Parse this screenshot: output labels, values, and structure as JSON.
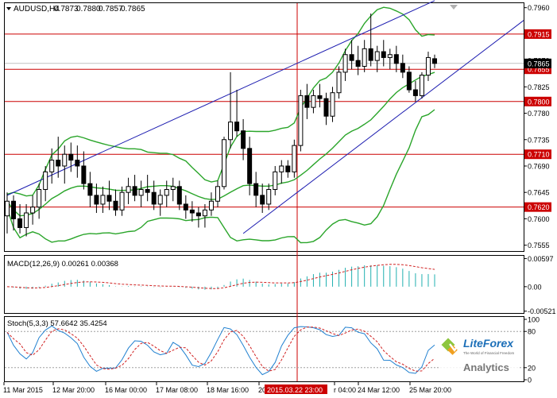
{
  "main_panel": {
    "symbol_label": "AUDUSD,H4",
    "ohlc": [
      "0.7873",
      "0.7880",
      "0.7857",
      "0.7865"
    ],
    "price_ticks": [
      "0.7960",
      "0.7870",
      "0.7825",
      "0.7780",
      "0.7735",
      "0.7690",
      "0.7645",
      "0.7600",
      "0.7555"
    ],
    "level_labels": [
      "0.7915",
      "0.7855",
      "0.7800",
      "0.7710",
      "0.7620"
    ],
    "current_price_label": "0.7865"
  },
  "macd_panel": {
    "label": "MACD(12,26,9) 0.00261 0.00368",
    "ticks": [
      "0.00597",
      "0.00",
      "-0.00521"
    ]
  },
  "stoch_panel": {
    "label": "Stoch(5,3,3) 57.6642 35.4254",
    "ticks": [
      "100",
      "80",
      "20",
      "0"
    ]
  },
  "time_axis": {
    "labels": [
      "11 Mar 2015",
      "12 Mar 20:00",
      "16 Mar 00:00",
      "17 Mar 08:00",
      "18 Mar 16:00",
      "20",
      "r 04:00",
      "24 Mar 12:00",
      "25 Mar 20:00"
    ],
    "crosshair_label": "2015.03.22 23:00"
  },
  "watermark": {
    "brand": "LiteForex",
    "tagline": "The World of Financial Freedom",
    "product": "Analytics"
  },
  "colors": {
    "level_red": "#cc0000",
    "bollinger_green": "#2aa52a",
    "channel_blue": "#1c1cb0",
    "macd_teal": "#20b0b0",
    "signal_red": "#d02020",
    "stoch_blue": "#2080d0"
  },
  "chart_data": [
    {
      "type": "candlestick",
      "title": "AUDUSD,H4",
      "ylim": [
        0.7545,
        0.7965
      ],
      "horizontal_levels": [
        0.7915,
        0.7855,
        0.78,
        0.771,
        0.762
      ],
      "current_price": 0.7865,
      "ohlc": [
        [
          0.7605,
          0.7645,
          0.7575,
          0.763
        ],
        [
          0.763,
          0.764,
          0.758,
          0.76
        ],
        [
          0.76,
          0.7625,
          0.7575,
          0.7585
        ],
        [
          0.7585,
          0.7625,
          0.757,
          0.761
        ],
        [
          0.761,
          0.764,
          0.759,
          0.762
        ],
        [
          0.762,
          0.766,
          0.76,
          0.765
        ],
        [
          0.765,
          0.769,
          0.763,
          0.768
        ],
        [
          0.768,
          0.772,
          0.766,
          0.77
        ],
        [
          0.77,
          0.774,
          0.767,
          0.769
        ],
        [
          0.769,
          0.7725,
          0.766,
          0.771
        ],
        [
          0.771,
          0.773,
          0.768,
          0.77
        ],
        [
          0.77,
          0.7725,
          0.767,
          0.769
        ],
        [
          0.769,
          0.7715,
          0.765,
          0.766
        ],
        [
          0.766,
          0.768,
          0.762,
          0.764
        ],
        [
          0.764,
          0.766,
          0.761,
          0.7625
        ],
        [
          0.7625,
          0.7655,
          0.761,
          0.764
        ],
        [
          0.764,
          0.7665,
          0.7615,
          0.763
        ],
        [
          0.763,
          0.765,
          0.7605,
          0.7615
        ],
        [
          0.7615,
          0.7655,
          0.7605,
          0.7645
        ],
        [
          0.7645,
          0.767,
          0.7625,
          0.7655
        ],
        [
          0.7655,
          0.7675,
          0.763,
          0.764
        ],
        [
          0.764,
          0.7665,
          0.762,
          0.765
        ],
        [
          0.765,
          0.7675,
          0.763,
          0.7645
        ],
        [
          0.7645,
          0.7665,
          0.7615,
          0.7625
        ],
        [
          0.7625,
          0.765,
          0.7605,
          0.764
        ],
        [
          0.764,
          0.7665,
          0.762,
          0.765
        ],
        [
          0.765,
          0.767,
          0.763,
          0.7655
        ],
        [
          0.7655,
          0.7665,
          0.7615,
          0.7625
        ],
        [
          0.7625,
          0.764,
          0.76,
          0.7615
        ],
        [
          0.7615,
          0.763,
          0.7595,
          0.761
        ],
        [
          0.761,
          0.762,
          0.7585,
          0.7605
        ],
        [
          0.7605,
          0.7625,
          0.7585,
          0.7615
        ],
        [
          0.7615,
          0.7645,
          0.7605,
          0.763
        ],
        [
          0.763,
          0.7665,
          0.762,
          0.7655
        ],
        [
          0.7655,
          0.774,
          0.765,
          0.7735
        ],
        [
          0.7735,
          0.785,
          0.772,
          0.7765
        ],
        [
          0.7765,
          0.782,
          0.774,
          0.775
        ],
        [
          0.775,
          0.777,
          0.77,
          0.772
        ],
        [
          0.772,
          0.774,
          0.764,
          0.766
        ],
        [
          0.766,
          0.768,
          0.762,
          0.764
        ],
        [
          0.764,
          0.766,
          0.761,
          0.7625
        ],
        [
          0.7625,
          0.766,
          0.7615,
          0.765
        ],
        [
          0.765,
          0.769,
          0.764,
          0.768
        ],
        [
          0.768,
          0.77,
          0.766,
          0.769
        ],
        [
          0.769,
          0.77,
          0.767,
          0.768
        ],
        [
          0.768,
          0.7735,
          0.767,
          0.7725
        ],
        [
          0.7725,
          0.782,
          0.7715,
          0.781
        ],
        [
          0.781,
          0.783,
          0.777,
          0.779
        ],
        [
          0.779,
          0.782,
          0.778,
          0.781
        ],
        [
          0.781,
          0.783,
          0.779,
          0.7805
        ],
        [
          0.7805,
          0.7815,
          0.776,
          0.7775
        ],
        [
          0.7775,
          0.7825,
          0.7765,
          0.7815
        ],
        [
          0.7815,
          0.786,
          0.7805,
          0.785
        ],
        [
          0.785,
          0.789,
          0.7835,
          0.788
        ],
        [
          0.788,
          0.7905,
          0.7855,
          0.787
        ],
        [
          0.787,
          0.7895,
          0.7845,
          0.786
        ],
        [
          0.786,
          0.7905,
          0.785,
          0.789
        ],
        [
          0.789,
          0.795,
          0.786,
          0.787
        ],
        [
          0.787,
          0.7895,
          0.785,
          0.7885
        ],
        [
          0.7885,
          0.7905,
          0.786,
          0.7875
        ],
        [
          0.7875,
          0.789,
          0.7855,
          0.788
        ],
        [
          0.788,
          0.7895,
          0.785,
          0.7865
        ],
        [
          0.7865,
          0.788,
          0.784,
          0.785
        ],
        [
          0.785,
          0.786,
          0.7815,
          0.782
        ],
        [
          0.782,
          0.7835,
          0.78,
          0.781
        ],
        [
          0.781,
          0.785,
          0.7805,
          0.7845
        ],
        [
          0.7845,
          0.7885,
          0.7835,
          0.7875
        ],
        [
          0.7873,
          0.788,
          0.7857,
          0.7865
        ]
      ],
      "trend_channel": {
        "upper": [
          [
            0,
            0.764
          ],
          [
            67,
            0.7972
          ]
        ],
        "lower": [
          [
            37,
            0.7575
          ],
          [
            67,
            0.7823
          ]
        ]
      }
    },
    {
      "type": "bar",
      "title": "MACD(12,26,9)",
      "main": 0.00261,
      "signal": 0.00368,
      "ylim": [
        -0.0056,
        0.0064
      ]
    },
    {
      "type": "line",
      "title": "Stoch(5,3,3)",
      "k": 57.6642,
      "d": 35.4254,
      "levels": [
        20,
        80
      ],
      "ylim": [
        0,
        100
      ]
    }
  ]
}
